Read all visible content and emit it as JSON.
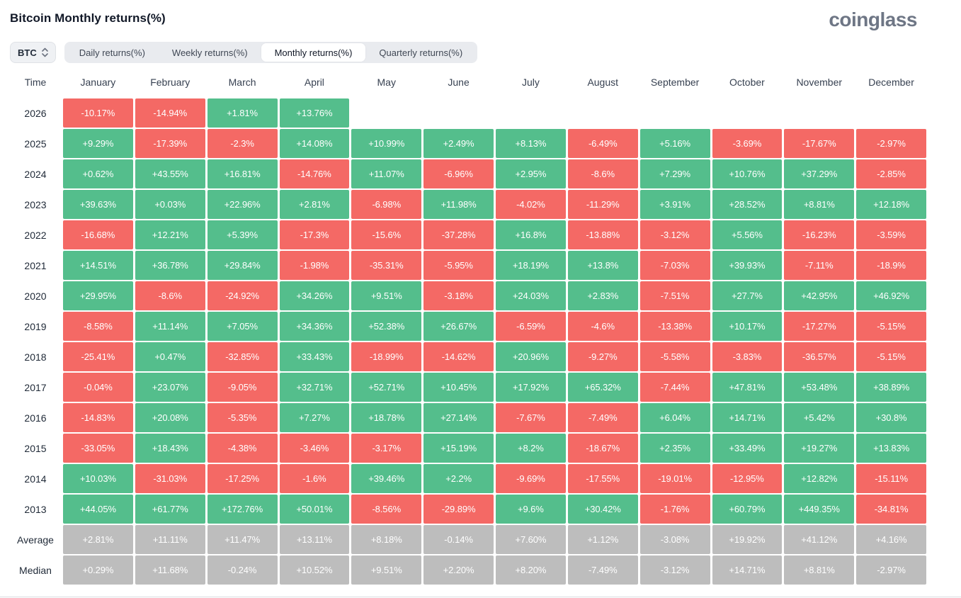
{
  "header": {
    "title": "Bitcoin Monthly returns(%)",
    "logo": "coinglass"
  },
  "controls": {
    "coin_select": {
      "value": "BTC",
      "icon": "updown-chevrons-icon"
    },
    "tabs": [
      {
        "label": "Daily returns(%)",
        "active": false
      },
      {
        "label": "Weekly returns(%)",
        "active": false
      },
      {
        "label": "Monthly returns(%)",
        "active": true
      },
      {
        "label": "Quarterly returns(%)",
        "active": false
      }
    ]
  },
  "colors": {
    "positive": "#54BE8C",
    "negative": "#F46965",
    "neutral": "#BDBDBD"
  },
  "chart_data": {
    "type": "heatmap",
    "title": "Bitcoin Monthly returns(%)",
    "time_header": "Time",
    "columns": [
      "January",
      "February",
      "March",
      "April",
      "May",
      "June",
      "July",
      "August",
      "September",
      "October",
      "November",
      "December"
    ],
    "rows": [
      {
        "label": "2026",
        "kind": "year",
        "values": [
          "-10.17%",
          "-14.94%",
          "+1.81%",
          "+13.76%",
          "",
          "",
          "",
          "",
          "",
          "",
          "",
          ""
        ]
      },
      {
        "label": "2025",
        "kind": "year",
        "values": [
          "+9.29%",
          "-17.39%",
          "-2.3%",
          "+14.08%",
          "+10.99%",
          "+2.49%",
          "+8.13%",
          "-6.49%",
          "+5.16%",
          "-3.69%",
          "-17.67%",
          "-2.97%"
        ]
      },
      {
        "label": "2024",
        "kind": "year",
        "values": [
          "+0.62%",
          "+43.55%",
          "+16.81%",
          "-14.76%",
          "+11.07%",
          "-6.96%",
          "+2.95%",
          "-8.6%",
          "+7.29%",
          "+10.76%",
          "+37.29%",
          "-2.85%"
        ]
      },
      {
        "label": "2023",
        "kind": "year",
        "values": [
          "+39.63%",
          "+0.03%",
          "+22.96%",
          "+2.81%",
          "-6.98%",
          "+11.98%",
          "-4.02%",
          "-11.29%",
          "+3.91%",
          "+28.52%",
          "+8.81%",
          "+12.18%"
        ]
      },
      {
        "label": "2022",
        "kind": "year",
        "values": [
          "-16.68%",
          "+12.21%",
          "+5.39%",
          "-17.3%",
          "-15.6%",
          "-37.28%",
          "+16.8%",
          "-13.88%",
          "-3.12%",
          "+5.56%",
          "-16.23%",
          "-3.59%"
        ]
      },
      {
        "label": "2021",
        "kind": "year",
        "values": [
          "+14.51%",
          "+36.78%",
          "+29.84%",
          "-1.98%",
          "-35.31%",
          "-5.95%",
          "+18.19%",
          "+13.8%",
          "-7.03%",
          "+39.93%",
          "-7.11%",
          "-18.9%"
        ]
      },
      {
        "label": "2020",
        "kind": "year",
        "values": [
          "+29.95%",
          "-8.6%",
          "-24.92%",
          "+34.26%",
          "+9.51%",
          "-3.18%",
          "+24.03%",
          "+2.83%",
          "-7.51%",
          "+27.7%",
          "+42.95%",
          "+46.92%"
        ]
      },
      {
        "label": "2019",
        "kind": "year",
        "values": [
          "-8.58%",
          "+11.14%",
          "+7.05%",
          "+34.36%",
          "+52.38%",
          "+26.67%",
          "-6.59%",
          "-4.6%",
          "-13.38%",
          "+10.17%",
          "-17.27%",
          "-5.15%"
        ]
      },
      {
        "label": "2018",
        "kind": "year",
        "values": [
          "-25.41%",
          "+0.47%",
          "-32.85%",
          "+33.43%",
          "-18.99%",
          "-14.62%",
          "+20.96%",
          "-9.27%",
          "-5.58%",
          "-3.83%",
          "-36.57%",
          "-5.15%"
        ]
      },
      {
        "label": "2017",
        "kind": "year",
        "values": [
          "-0.04%",
          "+23.07%",
          "-9.05%",
          "+32.71%",
          "+52.71%",
          "+10.45%",
          "+17.92%",
          "+65.32%",
          "-7.44%",
          "+47.81%",
          "+53.48%",
          "+38.89%"
        ]
      },
      {
        "label": "2016",
        "kind": "year",
        "values": [
          "-14.83%",
          "+20.08%",
          "-5.35%",
          "+7.27%",
          "+18.78%",
          "+27.14%",
          "-7.67%",
          "-7.49%",
          "+6.04%",
          "+14.71%",
          "+5.42%",
          "+30.8%"
        ]
      },
      {
        "label": "2015",
        "kind": "year",
        "values": [
          "-33.05%",
          "+18.43%",
          "-4.38%",
          "-3.46%",
          "-3.17%",
          "+15.19%",
          "+8.2%",
          "-18.67%",
          "+2.35%",
          "+33.49%",
          "+19.27%",
          "+13.83%"
        ]
      },
      {
        "label": "2014",
        "kind": "year",
        "values": [
          "+10.03%",
          "-31.03%",
          "-17.25%",
          "-1.6%",
          "+39.46%",
          "+2.2%",
          "-9.69%",
          "-17.55%",
          "-19.01%",
          "-12.95%",
          "+12.82%",
          "-15.11%"
        ]
      },
      {
        "label": "2013",
        "kind": "year",
        "values": [
          "+44.05%",
          "+61.77%",
          "+172.76%",
          "+50.01%",
          "-8.56%",
          "-29.89%",
          "+9.6%",
          "+30.42%",
          "-1.76%",
          "+60.79%",
          "+449.35%",
          "-34.81%"
        ]
      },
      {
        "label": "Average",
        "kind": "summary",
        "values": [
          "+2.81%",
          "+11.11%",
          "+11.47%",
          "+13.11%",
          "+8.18%",
          "-0.14%",
          "+7.60%",
          "+1.12%",
          "-3.08%",
          "+19.92%",
          "+41.12%",
          "+4.16%"
        ]
      },
      {
        "label": "Median",
        "kind": "summary",
        "values": [
          "+0.29%",
          "+11.68%",
          "-0.24%",
          "+10.52%",
          "+9.51%",
          "+2.20%",
          "+8.20%",
          "-7.49%",
          "-3.12%",
          "+14.71%",
          "+8.81%",
          "-2.97%"
        ]
      }
    ]
  }
}
